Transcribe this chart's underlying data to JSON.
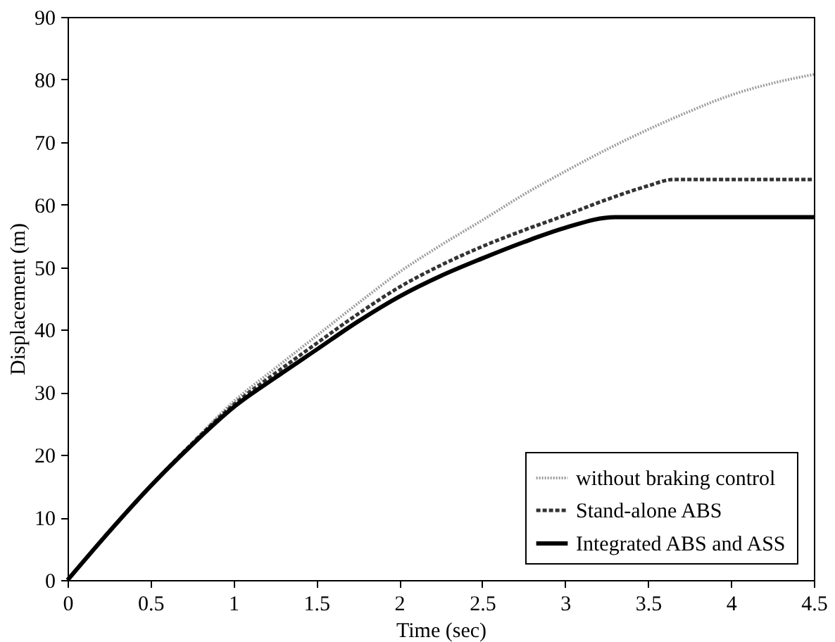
{
  "chart_data": {
    "type": "line",
    "xlabel": "Time (sec)",
    "ylabel": "Displacement (m)",
    "xlim": [
      0,
      4.5
    ],
    "ylim": [
      0,
      90
    ],
    "xticks": [
      0,
      0.5,
      1,
      1.5,
      2,
      2.5,
      3,
      3.5,
      4,
      4.5
    ],
    "yticks": [
      0,
      10,
      20,
      30,
      40,
      50,
      60,
      70,
      80,
      90
    ],
    "grid": false,
    "legend": "bottom right",
    "marker": "none",
    "series": [
      {
        "name": "without braking control",
        "color": "#9a9a9a",
        "line_style": "dotted",
        "x": [
          0,
          0.25,
          0.5,
          0.75,
          1,
          1.25,
          1.5,
          1.75,
          2,
          2.25,
          2.5,
          2.75,
          3,
          3.25,
          3.5,
          3.75,
          4,
          4.25,
          4.5
        ],
        "values": [
          0,
          7.7,
          15,
          21.9,
          28.5,
          33.8,
          39,
          44.2,
          49.2,
          53.5,
          57.5,
          61.6,
          65.3,
          68.8,
          72,
          74.9,
          77.5,
          79.4,
          80.8
        ]
      },
      {
        "name": "Stand-alone ABS",
        "color": "#333333",
        "line_style": "dashed",
        "x": [
          0,
          0.25,
          0.5,
          0.75,
          1,
          1.25,
          1.5,
          1.75,
          2,
          2.25,
          2.5,
          2.75,
          3,
          3.25,
          3.5,
          3.65,
          4.5
        ],
        "values": [
          0,
          7.7,
          15,
          21.8,
          28,
          33,
          37.8,
          42.5,
          46.8,
          50.3,
          53.3,
          55.9,
          58.3,
          60.8,
          63,
          64,
          64
        ]
      },
      {
        "name": "Integrated ABS and ASS",
        "color": "#000000",
        "line_style": "solid",
        "x": [
          0,
          0.25,
          0.5,
          0.75,
          1,
          1.25,
          1.5,
          1.75,
          2,
          2.25,
          2.5,
          2.75,
          3,
          3.3,
          4.5
        ],
        "values": [
          0,
          7.7,
          15,
          21.6,
          27.6,
          32.3,
          36.8,
          41.3,
          45.3,
          48.6,
          51.4,
          54,
          56.3,
          58,
          58
        ]
      }
    ]
  }
}
